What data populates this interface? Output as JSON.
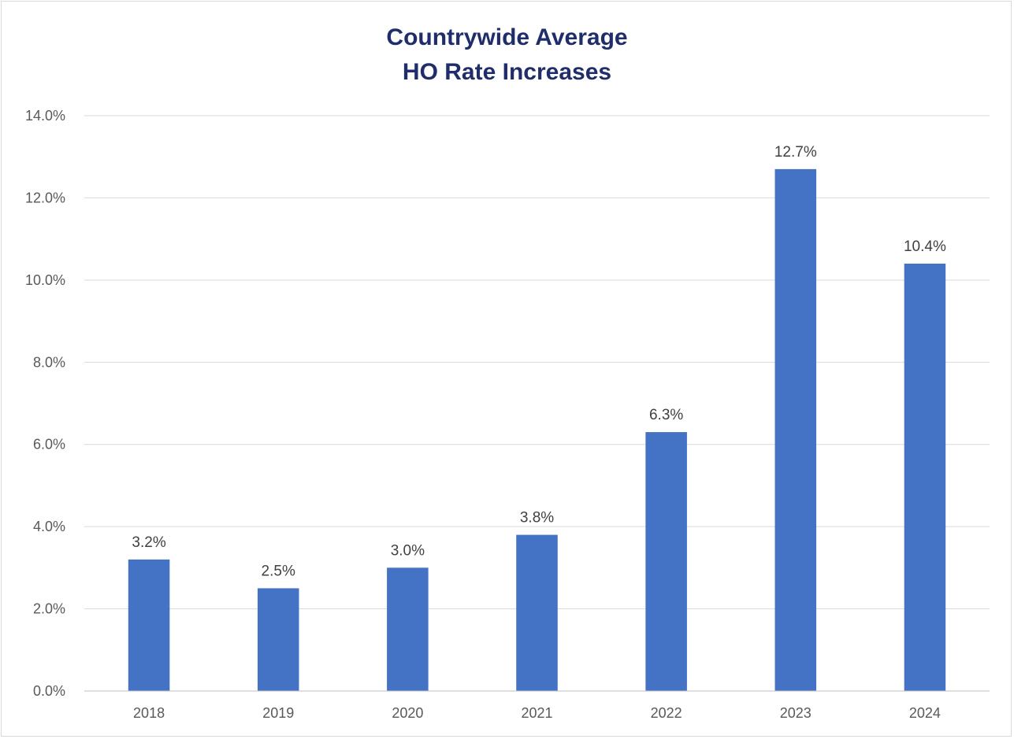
{
  "chart_data": {
    "type": "bar",
    "title_lines": [
      "Countrywide Average",
      "HO Rate Increases"
    ],
    "categories": [
      "2018",
      "2019",
      "2020",
      "2021",
      "2022",
      "2023",
      "2024"
    ],
    "values": [
      3.2,
      2.5,
      3.0,
      3.8,
      6.3,
      12.7,
      10.4
    ],
    "data_labels": [
      "3.2%",
      "2.5%",
      "3.0%",
      "3.8%",
      "6.3%",
      "12.7%",
      "10.4%"
    ],
    "y_ticks": [
      0,
      2,
      4,
      6,
      8,
      10,
      12,
      14
    ],
    "y_tick_labels": [
      "0.0%",
      "2.0%",
      "4.0%",
      "6.0%",
      "8.0%",
      "10.0%",
      "12.0%",
      "14.0%"
    ],
    "ylim": [
      0,
      14
    ],
    "xlabel": "",
    "ylabel": "",
    "grid": true,
    "legend": "none",
    "colors": {
      "bar": "#4472c4",
      "title": "#1f2d6b",
      "grid": "#d9d9d9",
      "axis": "#bfbfbf"
    }
  }
}
